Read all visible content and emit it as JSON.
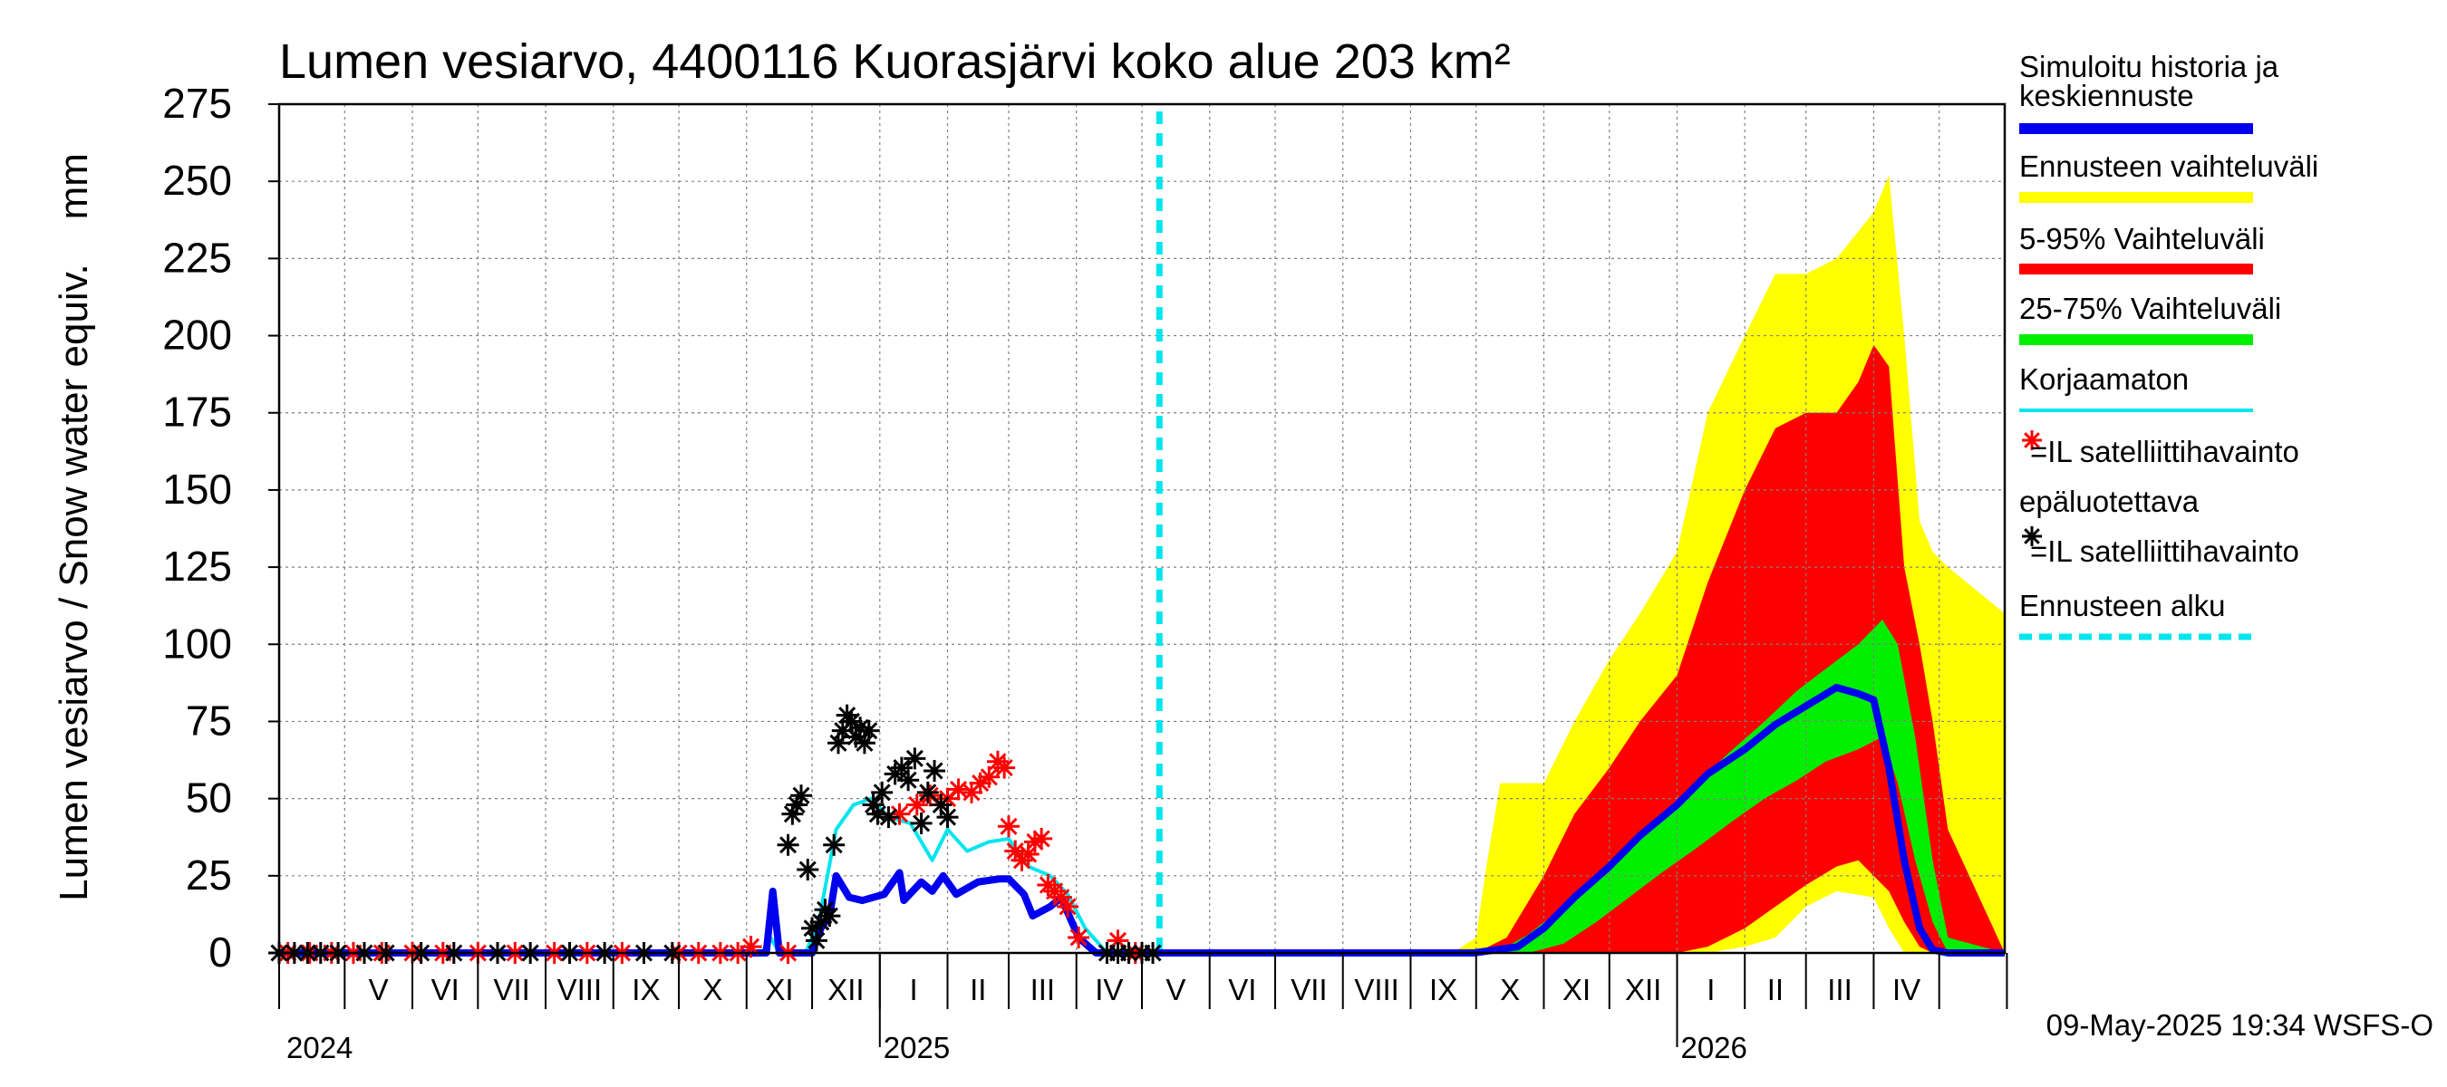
{
  "chart_data": {
    "type": "area",
    "title": "Lumen vesiarvo, 4400116 Kuorasjärvi koko alue 203 km²",
    "ylabel": "Lumen vesiarvo / Snow water equiv.    mm",
    "ylim": [
      0,
      275
    ],
    "yticks": [
      0,
      25,
      50,
      75,
      100,
      125,
      150,
      175,
      200,
      225,
      250,
      275
    ],
    "xlim": [
      "2024-04-01",
      "2026-05-31"
    ],
    "month_labels": [
      "V",
      "VI",
      "VII",
      "VIII",
      "IX",
      "X",
      "XI",
      "XII",
      "I",
      "II",
      "III",
      "IV",
      "V",
      "VI",
      "VII",
      "VIII",
      "IX",
      "X",
      "XI",
      "XII",
      "I",
      "II",
      "III",
      "IV"
    ],
    "year_labels": [
      "2024",
      "2025",
      "2026"
    ],
    "forecast_start": "2025-05-09",
    "footer": "09-May-2025 19:34 WSFS-O",
    "grid": true,
    "legend_position": "right",
    "legend": [
      {
        "label": "Simuloitu historia ja keskiennuste",
        "color": "#0000ee"
      },
      {
        "label": "Ennusteen vaihteluväli",
        "color": "#ffff00"
      },
      {
        "label": "5-95% Vaihteluväli",
        "color": "#ff0000"
      },
      {
        "label": "25-75% Vaihteluväli",
        "color": "#00ee00"
      },
      {
        "label": "Korjaamaton",
        "color": "#00e5ee"
      },
      {
        "label": "=IL satelliittihavainto epäluotettava",
        "color": "#ff0000",
        "marker": "*"
      },
      {
        "label": "=IL satelliittihavainto",
        "color": "#000000",
        "marker": "*"
      },
      {
        "label": "Ennusteen alku",
        "color": "#00e5ee",
        "dashed": true
      }
    ],
    "series": [
      {
        "name": "Simuloitu historia ja keskiennuste",
        "color": "#0000ee",
        "x": [
          "2024-04-01",
          "2024-11-10",
          "2024-11-13",
          "2024-11-16",
          "2024-11-22",
          "2024-11-25",
          "2024-12-01",
          "2024-12-05",
          "2024-12-09",
          "2024-12-12",
          "2024-12-18",
          "2024-12-24",
          "2025-01-03",
          "2025-01-10",
          "2025-01-12",
          "2025-01-20",
          "2025-01-25",
          "2025-01-30",
          "2025-02-05",
          "2025-02-15",
          "2025-02-25",
          "2025-03-01",
          "2025-03-08",
          "2025-03-12",
          "2025-03-20",
          "2025-03-25",
          "2025-04-02",
          "2025-04-10",
          "2025-05-09",
          "2025-09-30",
          "2025-10-20",
          "2025-11-01",
          "2025-11-15",
          "2025-12-01",
          "2025-12-15",
          "2026-01-01",
          "2026-01-15",
          "2026-02-01",
          "2026-02-15",
          "2026-03-01",
          "2026-03-15",
          "2026-03-25",
          "2026-04-01",
          "2026-04-08",
          "2026-04-15",
          "2026-04-22",
          "2026-04-28",
          "2026-05-05",
          "2026-05-31"
        ],
        "y": [
          0,
          0,
          20,
          0,
          0,
          0,
          0,
          8,
          12,
          25,
          18,
          17,
          19,
          26,
          17,
          23,
          20,
          25,
          19,
          23,
          24,
          24,
          19,
          12,
          15,
          18,
          5,
          0,
          0,
          0,
          2,
          8,
          18,
          28,
          38,
          48,
          58,
          66,
          74,
          80,
          86,
          84,
          82,
          60,
          30,
          8,
          1,
          0,
          0
        ]
      },
      {
        "name": "Korjaamaton",
        "color": "#00e5ee",
        "x": [
          "2024-04-01",
          "2024-11-08",
          "2024-11-12",
          "2024-11-16",
          "2024-11-22",
          "2024-11-28",
          "2024-12-04",
          "2024-12-08",
          "2024-12-12",
          "2024-12-20",
          "2024-12-28",
          "2025-01-05",
          "2025-01-15",
          "2025-01-25",
          "2025-02-01",
          "2025-02-10",
          "2025-02-20",
          "2025-03-01",
          "2025-03-10",
          "2025-03-20",
          "2025-03-28",
          "2025-04-05",
          "2025-04-15",
          "2025-05-09"
        ],
        "y": [
          0,
          0,
          5,
          0,
          0,
          0,
          10,
          25,
          40,
          48,
          50,
          44,
          42,
          30,
          40,
          33,
          36,
          37,
          28,
          25,
          19,
          8,
          0,
          0
        ]
      }
    ],
    "bands": [
      {
        "name": "Ennusteen vaihteluväli",
        "color": "#ffff00",
        "x": [
          "2025-05-09",
          "2025-09-20",
          "2025-10-01",
          "2025-10-05",
          "2025-10-12",
          "2025-10-20",
          "2025-11-01",
          "2025-11-15",
          "2025-12-01",
          "2025-12-15",
          "2026-01-01",
          "2026-01-15",
          "2026-02-01",
          "2026-02-15",
          "2026-03-01",
          "2026-03-15",
          "2026-04-01",
          "2026-04-08",
          "2026-04-15",
          "2026-04-22",
          "2026-04-28",
          "2026-05-05",
          "2026-05-31"
        ],
        "upper": [
          0,
          0,
          5,
          25,
          55,
          55,
          55,
          75,
          95,
          110,
          130,
          175,
          200,
          220,
          220,
          225,
          240,
          252,
          200,
          140,
          130,
          125,
          110
        ],
        "lower": [
          0,
          0,
          0,
          0,
          0,
          0,
          0,
          0,
          0,
          0,
          0,
          0,
          2,
          5,
          15,
          20,
          18,
          8,
          0,
          0,
          0,
          0,
          0
        ]
      },
      {
        "name": "5-95% Vaihteluväli",
        "color": "#ff0000",
        "x": [
          "2025-05-09",
          "2025-10-01",
          "2025-10-15",
          "2025-11-01",
          "2025-11-15",
          "2025-12-01",
          "2025-12-15",
          "2026-01-01",
          "2026-01-15",
          "2026-02-01",
          "2026-02-15",
          "2026-03-01",
          "2026-03-15",
          "2026-03-25",
          "2026-04-01",
          "2026-04-08",
          "2026-04-15",
          "2026-04-22",
          "2026-04-28",
          "2026-05-05",
          "2026-05-31"
        ],
        "upper": [
          0,
          0,
          5,
          25,
          45,
          60,
          75,
          90,
          120,
          150,
          170,
          175,
          175,
          185,
          197,
          190,
          125,
          100,
          75,
          40,
          0
        ],
        "lower": [
          0,
          0,
          0,
          0,
          0,
          0,
          0,
          0,
          2,
          8,
          15,
          22,
          28,
          30,
          25,
          20,
          10,
          2,
          0,
          0,
          0
        ]
      },
      {
        "name": "25-75% Vaihteluväli",
        "color": "#00ee00",
        "x": [
          "2025-05-09",
          "2025-10-10",
          "2025-10-25",
          "2025-11-10",
          "2025-11-25",
          "2025-12-10",
          "2025-12-25",
          "2026-01-10",
          "2026-01-25",
          "2026-02-10",
          "2026-02-25",
          "2026-03-10",
          "2026-03-25",
          "2026-04-05",
          "2026-04-12",
          "2026-04-20",
          "2026-04-28",
          "2026-05-05",
          "2026-05-31"
        ],
        "upper": [
          0,
          0,
          6,
          15,
          25,
          35,
          45,
          55,
          65,
          75,
          85,
          92,
          100,
          108,
          100,
          70,
          30,
          5,
          0
        ],
        "lower": [
          0,
          0,
          0,
          3,
          10,
          18,
          26,
          34,
          42,
          50,
          56,
          62,
          66,
          70,
          55,
          30,
          10,
          0,
          0
        ]
      }
    ],
    "observations_unreliable": {
      "label": "=IL satelliittihavainto epäluotettava",
      "color": "#ff0000",
      "x": [
        "2024-04-05",
        "2024-04-15",
        "2024-04-25",
        "2024-05-05",
        "2024-05-18",
        "2024-06-01",
        "2024-06-15",
        "2024-07-01",
        "2024-07-18",
        "2024-08-05",
        "2024-08-20",
        "2024-09-05",
        "2024-10-01",
        "2024-10-10",
        "2024-10-20",
        "2024-10-28",
        "2024-11-03",
        "2024-11-20",
        "2025-01-10",
        "2025-01-18",
        "2025-01-24",
        "2025-02-01",
        "2025-02-06",
        "2025-02-12",
        "2025-02-16",
        "2025-02-20",
        "2025-02-24",
        "2025-02-27",
        "2025-03-01",
        "2025-03-04",
        "2025-03-07",
        "2025-03-10",
        "2025-03-13",
        "2025-03-16",
        "2025-03-19",
        "2025-03-22",
        "2025-03-25",
        "2025-03-28",
        "2025-04-02",
        "2025-04-20",
        "2025-04-28"
      ],
      "y": [
        0,
        0,
        0,
        0,
        0,
        0,
        0,
        0,
        0,
        0,
        0,
        0,
        0,
        0,
        0,
        0,
        2,
        0,
        45,
        48,
        51,
        50,
        53,
        52,
        55,
        57,
        62,
        60,
        41,
        33,
        30,
        32,
        36,
        37,
        22,
        20,
        18,
        15,
        5,
        4,
        0
      ]
    },
    "observations": {
      "label": "=IL satelliittihavainto",
      "color": "#000000",
      "x": [
        "2024-04-01",
        "2024-04-08",
        "2024-04-14",
        "2024-04-20",
        "2024-04-28",
        "2024-05-10",
        "2024-05-20",
        "2024-06-05",
        "2024-06-20",
        "2024-07-10",
        "2024-07-25",
        "2024-08-12",
        "2024-08-28",
        "2024-09-15",
        "2024-09-28",
        "2024-11-20",
        "2024-11-22",
        "2024-11-24",
        "2024-11-26",
        "2024-11-29",
        "2024-12-01",
        "2024-12-03",
        "2024-12-05",
        "2024-12-07",
        "2024-12-09",
        "2024-12-11",
        "2024-12-13",
        "2024-12-15",
        "2024-12-17",
        "2024-12-19",
        "2024-12-21",
        "2024-12-23",
        "2024-12-25",
        "2024-12-27",
        "2024-12-29",
        "2024-12-31",
        "2025-01-02",
        "2025-01-05",
        "2025-01-08",
        "2025-01-11",
        "2025-01-14",
        "2025-01-17",
        "2025-01-20",
        "2025-01-23",
        "2025-01-26",
        "2025-01-29",
        "2025-02-01",
        "2025-04-15",
        "2025-04-20",
        "2025-04-25",
        "2025-05-01",
        "2025-05-06"
      ],
      "y": [
        0,
        0,
        0,
        0,
        0,
        0,
        0,
        0,
        0,
        0,
        0,
        0,
        0,
        0,
        0,
        35,
        45,
        48,
        51,
        27,
        8,
        4,
        10,
        14,
        12,
        35,
        68,
        72,
        77,
        75,
        70,
        73,
        68,
        72,
        48,
        45,
        52,
        44,
        58,
        60,
        56,
        63,
        42,
        52,
        59,
        48,
        44,
        0,
        0,
        0,
        0,
        0
      ]
    }
  }
}
